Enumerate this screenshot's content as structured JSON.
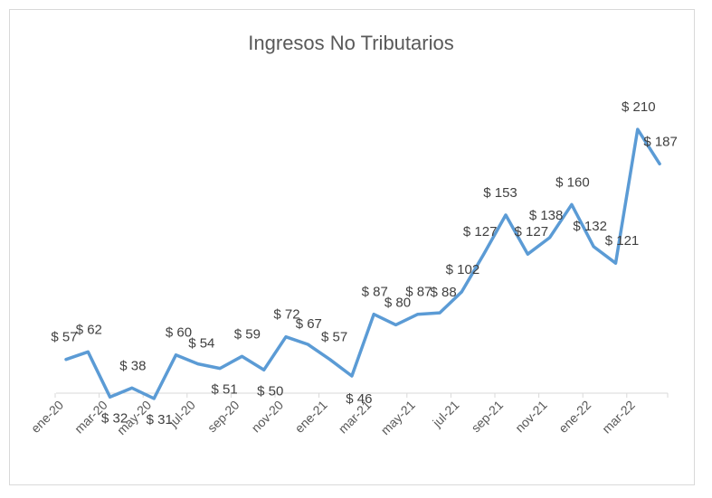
{
  "chart_data": {
    "type": "line",
    "title": "Ingresos No Tributarios",
    "tick_labels": [
      "ene-20",
      "mar-20",
      "may-20",
      "jul-20",
      "sep-20",
      "nov-20",
      "ene-21",
      "mar-21",
      "may-21",
      "jul-21",
      "sep-21",
      "nov-21",
      "ene-22",
      "mar-22"
    ],
    "months": [
      "ene-20",
      "feb-20",
      "mar-20",
      "abr-20",
      "may-20",
      "jun-20",
      "jul-20",
      "ago-20",
      "sep-20",
      "oct-20",
      "nov-20",
      "dic-20",
      "ene-21",
      "feb-21",
      "mar-21",
      "abr-21",
      "may-21",
      "jun-21",
      "jul-21",
      "ago-21",
      "sep-21",
      "oct-21",
      "nov-21",
      "dic-21",
      "ene-22",
      "feb-22",
      "mar-22",
      "abr-22"
    ],
    "values": [
      57,
      62,
      32,
      38,
      31,
      60,
      54,
      51,
      59,
      50,
      72,
      67,
      57,
      46,
      87,
      80,
      87,
      88,
      102,
      127,
      153,
      127,
      138,
      160,
      132,
      121,
      210,
      187
    ],
    "labels": [
      "$ 57",
      "$ 62",
      "$ 32",
      "$ 38",
      "$ 31",
      "$ 60",
      "$ 54",
      "$ 51",
      "$ 59",
      "$ 50",
      "$ 72",
      "$ 67",
      "$ 57",
      "$ 46",
      "$ 87",
      "$ 80",
      "$ 87",
      "$ 88",
      "$ 102",
      "$ 127",
      "$ 153",
      "$ 127",
      "$ 138",
      "$ 160",
      "$ 132",
      "$ 121",
      "$ 210",
      "$ 187"
    ],
    "line_color": "#5b9bd5",
    "grid": false,
    "legend": "none"
  }
}
